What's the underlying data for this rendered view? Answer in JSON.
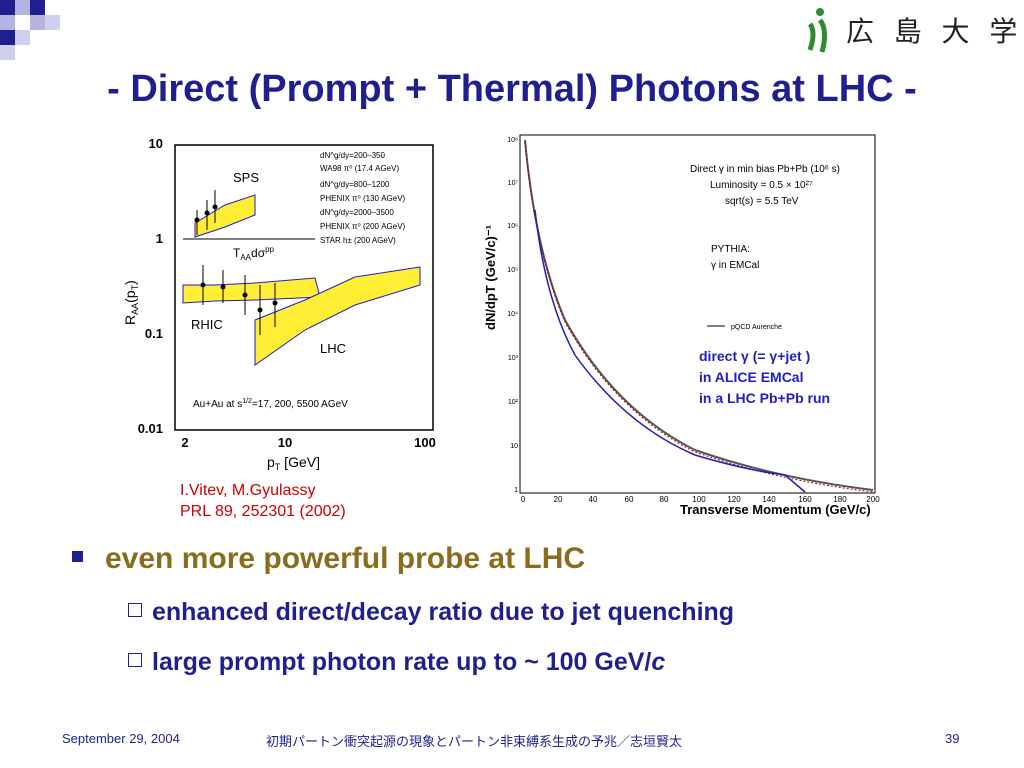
{
  "title": "- Direct (Prompt + Thermal) Photons at LHC -",
  "logo": {
    "text": "広 島 大 学"
  },
  "left_plot": {
    "y_ticks": [
      "10",
      "1",
      "0.1",
      "0.01"
    ],
    "x_ticks": [
      "2",
      "10",
      "100"
    ],
    "x_label": "p",
    "x_label_sub": "T",
    "x_label_unit": " [GeV]",
    "y_label": "R",
    "y_label_sub": "AA",
    "y_label_rest": "(p",
    "y_label_sub2": "T",
    "y_label_end": ")",
    "legend": [
      "dN^g/dy=200–350",
      "WA98 π⁰ (17.4 AGeV)",
      "dN^g/dy=800–1200",
      "PHENIX π⁰ (130 AGeV)",
      "dN^g/dy=2000–3500",
      "PHENIX π⁰ (200 AGeV)",
      "STAR h± (200 AGeV)"
    ],
    "sps_label": "SPS",
    "rhic_label": "RHIC",
    "lhc_label": "LHC",
    "taa_label": "T",
    "taa_sub": "AA",
    "taa_rest": "dσ",
    "taa_sup": "pp",
    "bottom_note": "Au+Au at s",
    "bottom_note_sup": "1/2",
    "bottom_note_rest": "=17, 200, 5500 AGeV"
  },
  "citation": {
    "line1": "I.Vitev, M.Gyulassy",
    "line2": "PRL 89, 252301 (2002)"
  },
  "right_plot": {
    "y_ticks": [
      "10⁸",
      "10⁷",
      "10⁶",
      "10⁵",
      "10⁴",
      "10³",
      "10²",
      "10",
      "1"
    ],
    "x_ticks": [
      "0",
      "20",
      "40",
      "60",
      "80",
      "100",
      "120",
      "140",
      "160",
      "180",
      "200"
    ],
    "x_label": "Transverse Momentum (GeV/c)",
    "y_label": "dN/dpT  (GeV/c)⁻¹",
    "info1": "Direct γ in min bias Pb+Pb (10⁶ s)",
    "info2": "Luminosity = 0.5 × 10²⁷",
    "info3": "sqrt(s) = 5.5 TeV",
    "pythia1": "PYTHIA:",
    "pythia2": "γ in EMCal",
    "legend": "pQCD Aurenche",
    "annot1": "direct γ (= γ+jet )",
    "annot2": "in ALICE EMCal",
    "annot3": "in a LHC Pb+Pb run"
  },
  "bullets": {
    "main": "even more powerful probe at LHC",
    "sub1": "enhanced direct/decay ratio due to jet quenching",
    "sub2_pre": "large prompt photon rate up to ~ 100 GeV/",
    "sub2_italic": "c"
  },
  "footer": {
    "date": "September 29, 2004",
    "center": "初期パートン衝突起源の現象とパートン非束縛系生成の予兆／志垣賢太",
    "page": "39"
  },
  "colors": {
    "title": "#1f1f8f",
    "accent": "#8a6d1c",
    "citation": "#cc0000",
    "band": "#ffee33"
  }
}
